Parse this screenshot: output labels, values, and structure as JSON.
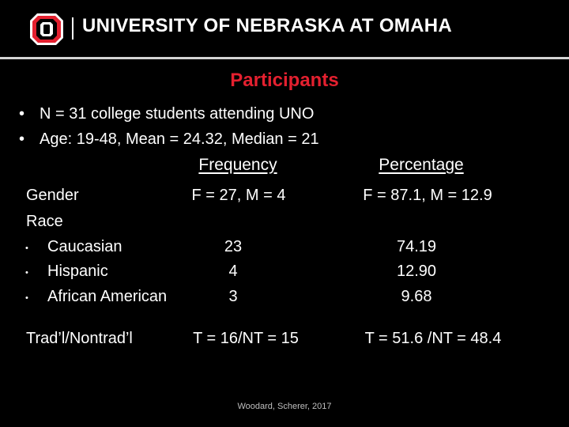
{
  "header": {
    "university_name": "UNIVERSITY OF NEBRASKA AT OMAHA",
    "logo_icon": "unomaha-o-logo-icon",
    "brand_color": "#e4202f"
  },
  "slide": {
    "title": "Participants",
    "bullets": [
      "N = 31 college students attending UNO",
      "Age: 19-48, Mean = 24.32, Median = 21"
    ],
    "bullet_glyph": "•",
    "table": {
      "columns": [
        "Frequency",
        "Percentage"
      ],
      "rows": {
        "gender": {
          "label": "Gender",
          "frequency": "F = 27, M = 4",
          "percentage": "F = 87.1, M = 12.9"
        },
        "race": {
          "label": "Race"
        },
        "caucasian": {
          "label": "Caucasian",
          "frequency": "23",
          "percentage": "74.19"
        },
        "hispanic": {
          "label": "Hispanic",
          "frequency": "4",
          "percentage": "12.90"
        },
        "african_american": {
          "label": "African American",
          "frequency": "3",
          "percentage": "9.68"
        },
        "trad": {
          "label": "Trad’l/Nontrad’l",
          "frequency": "T = 16/NT = 15",
          "percentage": "T = 51.6 /NT = 48.4"
        }
      },
      "sub_bullet_glyph": "•"
    },
    "footer": "Woodard, Scherer, 2017"
  }
}
